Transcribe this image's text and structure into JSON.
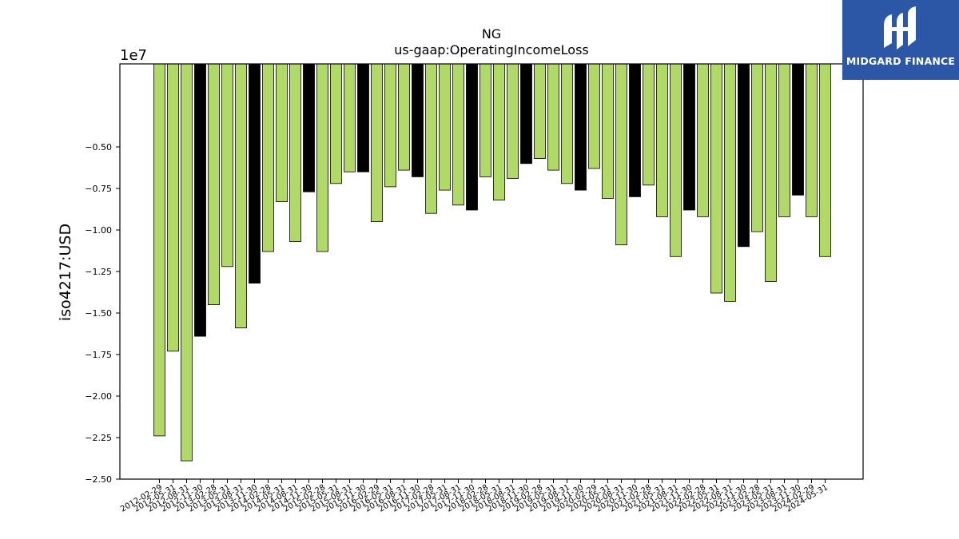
{
  "brand": {
    "name": "MIDGARD FINANCE",
    "color": "#2b57a6"
  },
  "chart_data": {
    "type": "bar",
    "title": "NG",
    "subtitle": "us-gaap:OperatingIncomeLoss",
    "ylabel": "iso4217:USD",
    "xlabel": "",
    "y_scale_label": "1e7",
    "ylim": [
      -2.5,
      0.0
    ],
    "y_ticks": [
      -0.5,
      -0.75,
      -1.0,
      -1.25,
      -1.5,
      -1.75,
      -2.0,
      -2.25,
      -2.5
    ],
    "y_tick_labels": [
      "−0.50",
      "−0.75",
      "−1.00",
      "−1.25",
      "−1.50",
      "−1.75",
      "−2.00",
      "−2.25",
      "−2.50"
    ],
    "colors": {
      "quarter": "#b0d966",
      "annual": "#000000"
    },
    "categories": [
      "2012-02-29",
      "2012-05-31",
      "2012-08-31",
      "2012-11-30",
      "2013-02-28",
      "2013-05-31",
      "2013-08-31",
      "2013-11-30",
      "2014-02-28",
      "2014-05-31",
      "2014-08-31",
      "2014-11-30",
      "2015-02-28",
      "2015-05-31",
      "2015-08-31",
      "2015-11-30",
      "2016-02-29",
      "2016-05-31",
      "2016-08-31",
      "2016-11-30",
      "2017-02-28",
      "2017-05-31",
      "2017-08-31",
      "2017-11-30",
      "2018-02-28",
      "2018-05-31",
      "2018-08-31",
      "2018-11-30",
      "2019-02-28",
      "2019-05-31",
      "2019-08-31",
      "2019-11-30",
      "2020-02-29",
      "2020-05-31",
      "2020-08-31",
      "2020-11-30",
      "2021-02-28",
      "2021-05-31",
      "2021-08-31",
      "2021-11-30",
      "2022-02-28",
      "2022-05-31",
      "2022-08-31",
      "2022-11-30",
      "2023-02-28",
      "2023-05-31",
      "2023-08-31",
      "2023-11-30",
      "2024-02-29",
      "2024-05-31"
    ],
    "values": [
      -2.24,
      -1.73,
      -2.39,
      -1.64,
      -1.45,
      -1.22,
      -1.59,
      -1.32,
      -1.13,
      -0.83,
      -1.07,
      -0.77,
      -1.13,
      -0.72,
      -0.65,
      -0.65,
      -0.95,
      -0.74,
      -0.64,
      -0.68,
      -0.9,
      -0.76,
      -0.85,
      -0.88,
      -0.68,
      -0.82,
      -0.69,
      -0.6,
      -0.57,
      -0.64,
      -0.72,
      -0.76,
      -0.63,
      -0.81,
      -1.09,
      -0.8,
      -0.73,
      -0.92,
      -1.16,
      -0.88,
      -0.92,
      -1.38,
      -1.43,
      -1.1,
      -1.01,
      -1.31,
      -0.92,
      -0.79,
      -0.92,
      -1.16
    ],
    "annual": [
      false,
      false,
      false,
      true,
      false,
      false,
      false,
      true,
      false,
      false,
      false,
      true,
      false,
      false,
      false,
      true,
      false,
      false,
      false,
      true,
      false,
      false,
      false,
      true,
      false,
      false,
      false,
      true,
      false,
      false,
      false,
      true,
      false,
      false,
      false,
      true,
      false,
      false,
      false,
      true,
      false,
      false,
      false,
      true,
      false,
      false,
      false,
      true,
      false,
      false
    ]
  }
}
